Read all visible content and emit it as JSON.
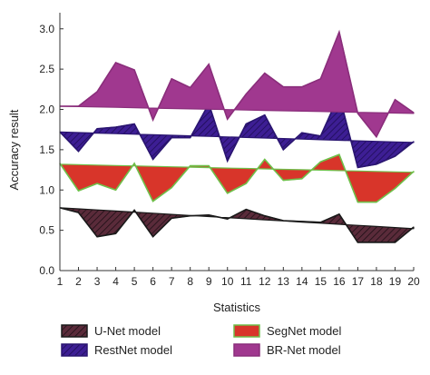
{
  "chart_data": {
    "type": "area",
    "xlabel": "Statistics",
    "ylabel": "Accuracy result",
    "x": [
      1,
      2,
      3,
      4,
      5,
      6,
      7,
      8,
      9,
      10,
      11,
      12,
      13,
      14,
      15,
      16,
      17,
      18,
      19,
      20
    ],
    "xlim": [
      1,
      20
    ],
    "ylim": [
      0.0,
      3.2
    ],
    "y_ticks": [
      0.0,
      0.5,
      1.0,
      1.5,
      2.0,
      2.5,
      3.0
    ],
    "y_tick_labels": [
      "0.0",
      "0.5",
      "1.0",
      "1.5",
      "2.0",
      "2.5",
      "3.0"
    ],
    "x_tick_labels": [
      "1",
      "2",
      "3",
      "4",
      "5",
      "6",
      "7",
      "8",
      "9",
      "10",
      "11",
      "12",
      "13",
      "14",
      "15",
      "16",
      "17",
      "18",
      "19",
      "20"
    ],
    "grid": false,
    "legend_position": "bottom",
    "series": [
      {
        "name": "U-Net model",
        "values": [
          0.78,
          0.72,
          0.42,
          0.46,
          0.75,
          0.42,
          0.65,
          0.68,
          0.69,
          0.64,
          0.76,
          0.68,
          0.62,
          0.61,
          0.6,
          0.7,
          0.35,
          0.35,
          0.35,
          0.54
        ],
        "baseline_start": 0.78,
        "baseline_end": 0.52,
        "fill": "#5a2b3a",
        "pattern": "hatch",
        "stroke": "#1a1a1a"
      },
      {
        "name": "SegNet model",
        "values": [
          1.33,
          0.99,
          1.08,
          1.0,
          1.33,
          0.86,
          1.03,
          1.3,
          1.3,
          0.96,
          1.08,
          1.38,
          1.12,
          1.14,
          1.35,
          1.44,
          0.85,
          0.85,
          1.02,
          1.23
        ],
        "baseline_start": 1.32,
        "baseline_end": 1.22,
        "fill": "#d8352a",
        "stroke": "#6fbf4a"
      },
      {
        "name": "RestNet model",
        "values": [
          1.72,
          1.48,
          1.76,
          1.78,
          1.82,
          1.38,
          1.65,
          1.65,
          2.07,
          1.36,
          1.82,
          1.93,
          1.5,
          1.71,
          1.67,
          2.18,
          1.28,
          1.32,
          1.42,
          1.6
        ],
        "baseline_start": 1.72,
        "baseline_end": 1.59,
        "fill": "#3d1e94",
        "pattern": "hatch",
        "stroke": "#2a1570"
      },
      {
        "name": "BR-Net model",
        "values": [
          2.04,
          2.04,
          2.22,
          2.58,
          2.49,
          1.87,
          2.38,
          2.27,
          2.56,
          1.88,
          2.19,
          2.45,
          2.28,
          2.28,
          2.38,
          2.96,
          1.95,
          1.66,
          2.12,
          1.96
        ],
        "baseline_start": 2.04,
        "baseline_end": 1.95,
        "fill": "#a0388f",
        "stroke": "#8a2e7b"
      }
    ]
  }
}
